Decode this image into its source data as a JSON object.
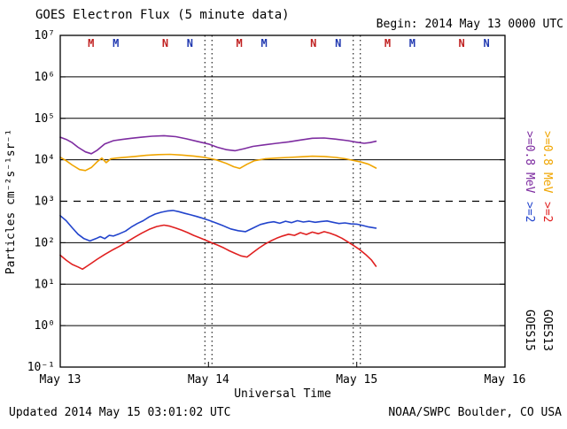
{
  "header": {
    "begin": "Begin: 2014 May 13 0000 UTC"
  },
  "footer": {
    "updated": "Updated 2014 May 15 03:01:02 UTC",
    "source": "NOAA/SWPC Boulder, CO USA"
  },
  "axes": {
    "y_ticks": [
      "10⁷",
      "10⁶",
      "10⁵",
      "10⁴",
      "10³",
      "10²",
      "10¹",
      "10⁰",
      "10⁻¹"
    ],
    "x_ticks": [
      "May 13",
      "May 14",
      "May 15",
      "May 16"
    ]
  },
  "legend": {
    "right": [
      {
        "label": ">=0.8 MeV",
        "color": "#7d2ca0"
      },
      {
        "label": ">=0.8 MeV",
        "color": "#f0a500"
      },
      {
        "label": ">=2",
        "color": "#2244cc"
      },
      {
        "label": ">=2",
        "color": "#e02020"
      },
      {
        "label": "GOES15",
        "color": "#000000"
      },
      {
        "label": "GOES13",
        "color": "#000000"
      }
    ]
  },
  "chart_data": {
    "type": "line",
    "title": "GOES Electron Flux (5 minute data)",
    "xlabel": "Universal Time",
    "ylabel": "Particles cm⁻²s⁻¹sr⁻¹",
    "y_scale": "log10",
    "ylim": [
      0.1,
      10000000
    ],
    "x_unit": "days since 2014 May 13 0000 UTC",
    "x_range_days": [
      0,
      3
    ],
    "x_tick_days": [
      0,
      1,
      2,
      3
    ],
    "x_tick_labels": [
      "May 13",
      "May 14",
      "May 15",
      "May 16"
    ],
    "y_solid_gridlines": [
      1,
      10,
      100,
      10000,
      100000,
      1000000
    ],
    "y_dashed_gridlines": [
      1000
    ],
    "x_dotted_gridlines_days": [
      1,
      2
    ],
    "legend_position": "right-rotated",
    "series": [
      {
        "name": "GOES15 >=0.8 MeV",
        "id": "goes15-ge0p8mev-curve",
        "color": "#7d2ca0",
        "points": [
          [
            0.0,
            35000
          ],
          [
            0.04,
            31000
          ],
          [
            0.08,
            26000
          ],
          [
            0.12,
            20000
          ],
          [
            0.17,
            15500
          ],
          [
            0.21,
            14000
          ],
          [
            0.25,
            17000
          ],
          [
            0.3,
            24000
          ],
          [
            0.36,
            29000
          ],
          [
            0.42,
            31000
          ],
          [
            0.48,
            33000
          ],
          [
            0.55,
            35000
          ],
          [
            0.62,
            37000
          ],
          [
            0.7,
            38000
          ],
          [
            0.78,
            36000
          ],
          [
            0.85,
            32000
          ],
          [
            0.92,
            28000
          ],
          [
            1.0,
            24000
          ],
          [
            1.06,
            20000
          ],
          [
            1.12,
            17500
          ],
          [
            1.18,
            16500
          ],
          [
            1.24,
            18500
          ],
          [
            1.3,
            21000
          ],
          [
            1.38,
            23000
          ],
          [
            1.46,
            25000
          ],
          [
            1.54,
            27000
          ],
          [
            1.62,
            30000
          ],
          [
            1.7,
            33000
          ],
          [
            1.78,
            33500
          ],
          [
            1.86,
            31500
          ],
          [
            1.94,
            29000
          ],
          [
            2.0,
            26500
          ],
          [
            2.05,
            25000
          ],
          [
            2.09,
            26000
          ],
          [
            2.13,
            28000
          ]
        ]
      },
      {
        "name": "GOES13 >=0.8 MeV",
        "id": "goes13-ge0p8mev-curve",
        "color": "#f0a500",
        "points": [
          [
            0.0,
            11500
          ],
          [
            0.04,
            9500
          ],
          [
            0.08,
            7500
          ],
          [
            0.13,
            5800
          ],
          [
            0.17,
            5500
          ],
          [
            0.21,
            6500
          ],
          [
            0.25,
            9000
          ],
          [
            0.28,
            11000
          ],
          [
            0.31,
            8500
          ],
          [
            0.34,
            10500
          ],
          [
            0.38,
            11000
          ],
          [
            0.44,
            11500
          ],
          [
            0.5,
            12000
          ],
          [
            0.58,
            12800
          ],
          [
            0.66,
            13300
          ],
          [
            0.74,
            13500
          ],
          [
            0.82,
            13000
          ],
          [
            0.9,
            12300
          ],
          [
            0.98,
            11300
          ],
          [
            1.05,
            10000
          ],
          [
            1.12,
            8200
          ],
          [
            1.17,
            6800
          ],
          [
            1.21,
            6200
          ],
          [
            1.26,
            7800
          ],
          [
            1.31,
            9500
          ],
          [
            1.38,
            10500
          ],
          [
            1.46,
            11000
          ],
          [
            1.54,
            11400
          ],
          [
            1.62,
            11800
          ],
          [
            1.7,
            12200
          ],
          [
            1.78,
            12000
          ],
          [
            1.86,
            11400
          ],
          [
            1.92,
            10600
          ],
          [
            1.98,
            9600
          ],
          [
            2.03,
            8800
          ],
          [
            2.08,
            7800
          ],
          [
            2.13,
            6300
          ]
        ]
      },
      {
        "name": "GOES15 >=2 MeV",
        "id": "goes15-ge2mev-curve",
        "color": "#2244cc",
        "points": [
          [
            0.0,
            450
          ],
          [
            0.04,
            340
          ],
          [
            0.08,
            230
          ],
          [
            0.12,
            160
          ],
          [
            0.16,
            125
          ],
          [
            0.2,
            110
          ],
          [
            0.24,
            125
          ],
          [
            0.27,
            140
          ],
          [
            0.3,
            125
          ],
          [
            0.33,
            150
          ],
          [
            0.36,
            145
          ],
          [
            0.4,
            165
          ],
          [
            0.44,
            190
          ],
          [
            0.48,
            240
          ],
          [
            0.52,
            290
          ],
          [
            0.56,
            340
          ],
          [
            0.6,
            420
          ],
          [
            0.64,
            490
          ],
          [
            0.68,
            540
          ],
          [
            0.72,
            580
          ],
          [
            0.76,
            600
          ],
          [
            0.8,
            560
          ],
          [
            0.84,
            510
          ],
          [
            0.88,
            470
          ],
          [
            0.92,
            430
          ],
          [
            0.96,
            390
          ],
          [
            1.0,
            350
          ],
          [
            1.05,
            300
          ],
          [
            1.1,
            255
          ],
          [
            1.15,
            215
          ],
          [
            1.2,
            195
          ],
          [
            1.25,
            185
          ],
          [
            1.3,
            225
          ],
          [
            1.35,
            275
          ],
          [
            1.4,
            305
          ],
          [
            1.44,
            320
          ],
          [
            1.48,
            295
          ],
          [
            1.52,
            330
          ],
          [
            1.56,
            305
          ],
          [
            1.6,
            340
          ],
          [
            1.64,
            315
          ],
          [
            1.68,
            330
          ],
          [
            1.72,
            310
          ],
          [
            1.76,
            325
          ],
          [
            1.8,
            335
          ],
          [
            1.84,
            310
          ],
          [
            1.88,
            290
          ],
          [
            1.92,
            300
          ],
          [
            1.96,
            285
          ],
          [
            2.0,
            280
          ],
          [
            2.04,
            260
          ],
          [
            2.08,
            240
          ],
          [
            2.13,
            225
          ]
        ]
      },
      {
        "name": "GOES13 >=2 MeV",
        "id": "goes13-ge2mev-curve",
        "color": "#e02020",
        "points": [
          [
            0.0,
            50
          ],
          [
            0.04,
            38
          ],
          [
            0.08,
            30
          ],
          [
            0.12,
            26
          ],
          [
            0.15,
            23
          ],
          [
            0.18,
            27
          ],
          [
            0.21,
            32
          ],
          [
            0.25,
            40
          ],
          [
            0.3,
            52
          ],
          [
            0.35,
            66
          ],
          [
            0.4,
            82
          ],
          [
            0.45,
            105
          ],
          [
            0.5,
            135
          ],
          [
            0.55,
            170
          ],
          [
            0.6,
            210
          ],
          [
            0.65,
            245
          ],
          [
            0.7,
            265
          ],
          [
            0.74,
            250
          ],
          [
            0.78,
            225
          ],
          [
            0.82,
            200
          ],
          [
            0.86,
            175
          ],
          [
            0.9,
            150
          ],
          [
            0.94,
            132
          ],
          [
            0.98,
            115
          ],
          [
            1.02,
            100
          ],
          [
            1.06,
            88
          ],
          [
            1.1,
            76
          ],
          [
            1.14,
            64
          ],
          [
            1.18,
            55
          ],
          [
            1.22,
            48
          ],
          [
            1.26,
            45
          ],
          [
            1.3,
            58
          ],
          [
            1.34,
            74
          ],
          [
            1.38,
            92
          ],
          [
            1.42,
            110
          ],
          [
            1.46,
            128
          ],
          [
            1.5,
            145
          ],
          [
            1.54,
            160
          ],
          [
            1.58,
            150
          ],
          [
            1.62,
            175
          ],
          [
            1.66,
            158
          ],
          [
            1.7,
            180
          ],
          [
            1.74,
            165
          ],
          [
            1.78,
            185
          ],
          [
            1.82,
            170
          ],
          [
            1.86,
            150
          ],
          [
            1.9,
            128
          ],
          [
            1.94,
            105
          ],
          [
            1.98,
            85
          ],
          [
            2.02,
            68
          ],
          [
            2.06,
            52
          ],
          [
            2.1,
            38
          ],
          [
            2.13,
            27
          ]
        ]
      }
    ],
    "top_markers": [
      {
        "label": "M",
        "color": "#c02020",
        "t_days": 0.208
      },
      {
        "label": "M",
        "color": "#2038b0",
        "t_days": 0.375
      },
      {
        "label": "N",
        "color": "#c02020",
        "t_days": 0.708
      },
      {
        "label": "N",
        "color": "#2038b0",
        "t_days": 0.875
      },
      {
        "label": "M",
        "color": "#c02020",
        "t_days": 1.208
      },
      {
        "label": "M",
        "color": "#2038b0",
        "t_days": 1.375
      },
      {
        "label": "N",
        "color": "#c02020",
        "t_days": 1.708
      },
      {
        "label": "N",
        "color": "#2038b0",
        "t_days": 1.875
      },
      {
        "label": "M",
        "color": "#c02020",
        "t_days": 2.208
      },
      {
        "label": "M",
        "color": "#2038b0",
        "t_days": 2.375
      },
      {
        "label": "N",
        "color": "#c02020",
        "t_days": 2.708
      },
      {
        "label": "N",
        "color": "#2038b0",
        "t_days": 2.875
      }
    ]
  }
}
